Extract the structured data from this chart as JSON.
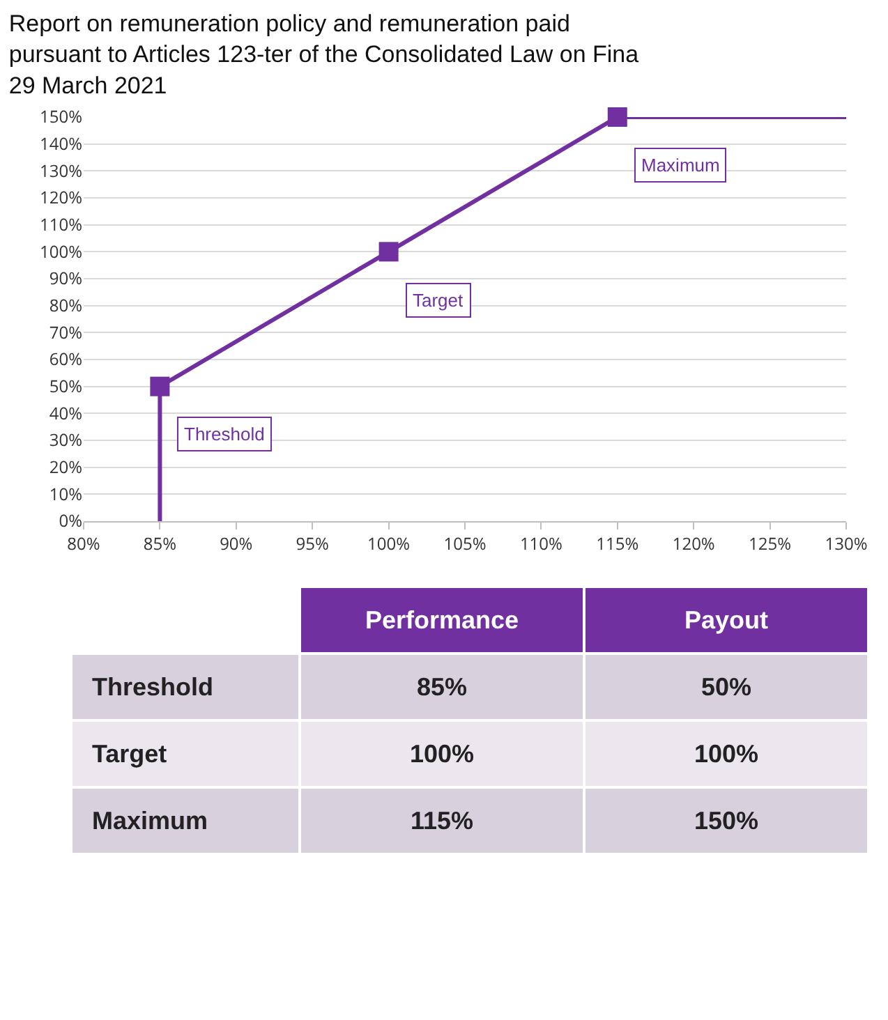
{
  "chart_data": {
    "type": "line",
    "title": "Report on remuneration policy and remuneration paid\npursuant to Articles 123-ter of the Consolidated Law on Fina\n29 March 2021",
    "series": [
      {
        "color": "#7030a0",
        "marker": "none",
        "line_style": "solid",
        "x": [
          85,
          85,
          100,
          115,
          130
        ],
        "values": [
          0,
          50,
          100,
          150,
          150
        ]
      },
      {
        "type": "scatter",
        "color": "#7030a0",
        "marker": "square",
        "x": [
          85,
          100,
          115
        ],
        "values": [
          50,
          100,
          150
        ]
      }
    ],
    "xlim": [
      80,
      130
    ],
    "xticks": [
      {
        "value": 80,
        "label": "80%"
      },
      {
        "value": 85,
        "label": "85%"
      },
      {
        "value": 90,
        "label": "90%"
      },
      {
        "value": 95,
        "label": "95%"
      },
      {
        "value": 100,
        "label": "100%"
      },
      {
        "value": 105,
        "label": "105%"
      },
      {
        "value": 110,
        "label": "110%"
      },
      {
        "value": 115,
        "label": "115%"
      },
      {
        "value": 120,
        "label": "120%"
      },
      {
        "value": 125,
        "label": "125%"
      },
      {
        "value": 130,
        "label": "130%"
      }
    ],
    "ylim": [
      0,
      150
    ],
    "yticks": [
      {
        "value": 0,
        "label": "0%"
      },
      {
        "value": 10,
        "label": "10%"
      },
      {
        "value": 20,
        "label": "20%"
      },
      {
        "value": 30,
        "label": "30%"
      },
      {
        "value": 40,
        "label": "40%"
      },
      {
        "value": 50,
        "label": "50%"
      },
      {
        "value": 60,
        "label": "60%"
      },
      {
        "value": 70,
        "label": "70%"
      },
      {
        "value": 80,
        "label": "80%"
      },
      {
        "value": 90,
        "label": "90%"
      },
      {
        "value": 100,
        "label": "100%"
      },
      {
        "value": 110,
        "label": "110%"
      },
      {
        "value": 120,
        "label": "120%"
      },
      {
        "value": 130,
        "label": "130%"
      },
      {
        "value": 140,
        "label": "140%"
      },
      {
        "value": 150,
        "label": "150%"
      }
    ],
    "grid": "y",
    "annotations": [
      {
        "text": "Threshold",
        "x": 85,
        "y": 50
      },
      {
        "text": "Target",
        "x": 100,
        "y": 100
      },
      {
        "text": "Maximum",
        "x": 115,
        "y": 150
      },
      "Performance",
      "Payout",
      "Threshold",
      "85%",
      "50%",
      "Target",
      "100%",
      "100%",
      "Maximum",
      "115%",
      "150%"
    ]
  }
}
